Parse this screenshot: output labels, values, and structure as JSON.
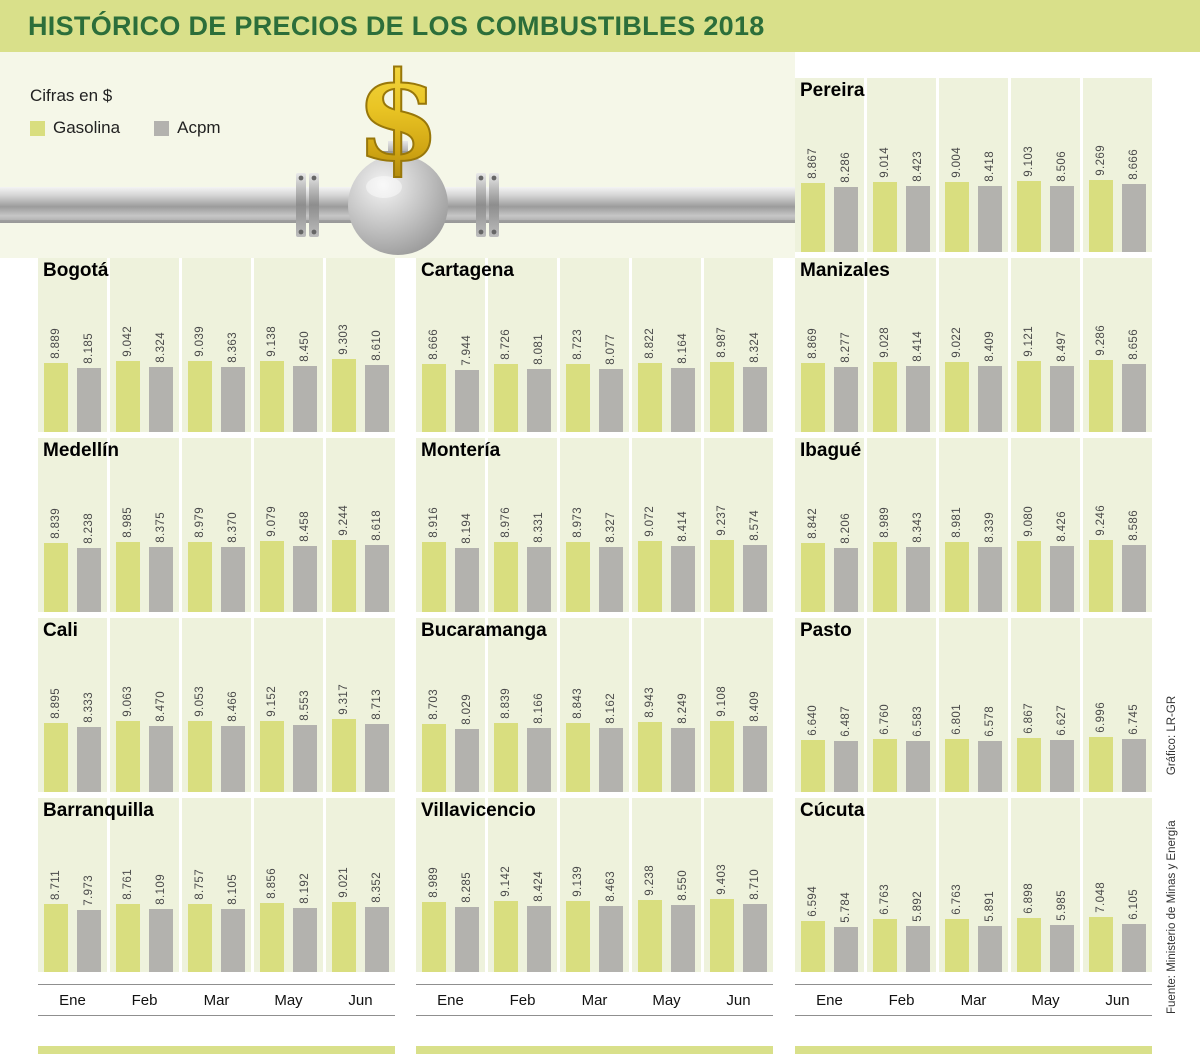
{
  "header": {
    "title": "HISTÓRICO DE PRECIOS DE LOS COMBUSTIBLES 2018"
  },
  "legend": {
    "caption": "Cifras en $",
    "items": [
      {
        "label": "Gasolina",
        "color": "#d9de7f"
      },
      {
        "label": "Acpm",
        "color": "#b3b2ae"
      }
    ]
  },
  "months": [
    "Ene",
    "Feb",
    "Mar",
    "May",
    "Jun"
  ],
  "footer": {
    "source": "Fuente: Ministerio de Minas y Energía",
    "credit": "Gráfico: LR-GR"
  },
  "colors": {
    "accent": "#d9e08a",
    "title_text": "#2c6e3a",
    "gasolina": "#d9de7f",
    "acpm": "#b3b2ae",
    "panel": "#eef2dc"
  },
  "chart_data": {
    "type": "bar",
    "unit": "$ (pesos, miles con punto)",
    "series_names": [
      "Gasolina",
      "Acpm"
    ],
    "categories": [
      "Ene",
      "Feb",
      "Mar",
      "May",
      "Jun"
    ],
    "ylim": [
      0,
      9500
    ],
    "columns": [
      [
        {
          "city": "Bogotá",
          "gasolina": [
            "8.889",
            "9.042",
            "9.039",
            "9.138",
            "9.303"
          ],
          "acpm": [
            "8.185",
            "8.324",
            "8.363",
            "8.450",
            "8.610"
          ]
        },
        {
          "city": "Medellín",
          "gasolina": [
            "8.839",
            "8.985",
            "8.979",
            "9.079",
            "9.244"
          ],
          "acpm": [
            "8.238",
            "8.375",
            "8.370",
            "8.458",
            "8.618"
          ]
        },
        {
          "city": "Cali",
          "gasolina": [
            "8.895",
            "9.063",
            "9.053",
            "9.152",
            "9.317"
          ],
          "acpm": [
            "8.333",
            "8.470",
            "8.466",
            "8.553",
            "8.713"
          ]
        },
        {
          "city": "Barranquilla",
          "gasolina": [
            "8.711",
            "8.761",
            "8.757",
            "8.856",
            "9.021"
          ],
          "acpm": [
            "7.973",
            "8.109",
            "8.105",
            "8.192",
            "8.352"
          ]
        }
      ],
      [
        {
          "city": "Cartagena",
          "gasolina": [
            "8.666",
            "8.726",
            "8.723",
            "8.822",
            "8.987"
          ],
          "acpm": [
            "7.944",
            "8.081",
            "8.077",
            "8.164",
            "8.324"
          ]
        },
        {
          "city": "Montería",
          "gasolina": [
            "8.916",
            "8.976",
            "8.973",
            "9.072",
            "9.237"
          ],
          "acpm": [
            "8.194",
            "8.331",
            "8.327",
            "8.414",
            "8.574"
          ]
        },
        {
          "city": "Bucaramanga",
          "gasolina": [
            "8.703",
            "8.839",
            "8.843",
            "8.943",
            "9.108"
          ],
          "acpm": [
            "8.029",
            "8.166",
            "8.162",
            "8.249",
            "8.409"
          ]
        },
        {
          "city": "Villavicencio",
          "gasolina": [
            "8.989",
            "9.142",
            "9.139",
            "9.238",
            "9.403"
          ],
          "acpm": [
            "8.285",
            "8.424",
            "8.463",
            "8.550",
            "8.710"
          ]
        }
      ],
      [
        {
          "city": "Pereira",
          "gasolina": [
            "8.867",
            "9.014",
            "9.004",
            "9.103",
            "9.269"
          ],
          "acpm": [
            "8.286",
            "8.423",
            "8.418",
            "8.506",
            "8.666"
          ]
        },
        {
          "city": "Manizales",
          "gasolina": [
            "8.869",
            "9.028",
            "9.022",
            "9.121",
            "9.286"
          ],
          "acpm": [
            "8.277",
            "8.414",
            "8.409",
            "8.497",
            "8.656"
          ]
        },
        {
          "city": "Ibagué",
          "gasolina": [
            "8.842",
            "8.989",
            "8.981",
            "9.080",
            "9.246"
          ],
          "acpm": [
            "8.206",
            "8.343",
            "8.339",
            "8.426",
            "8.586"
          ]
        },
        {
          "city": "Pasto",
          "gasolina": [
            "6.640",
            "6.760",
            "6.801",
            "6.867",
            "6.996"
          ],
          "acpm": [
            "6.487",
            "6.583",
            "6.578",
            "6.627",
            "6.745"
          ]
        },
        {
          "city": "Cúcuta",
          "gasolina": [
            "6.594",
            "6.763",
            "6.763",
            "6.898",
            "7.048"
          ],
          "acpm": [
            "5.784",
            "5.892",
            "5.891",
            "5.985",
            "6.105"
          ]
        }
      ]
    ]
  }
}
